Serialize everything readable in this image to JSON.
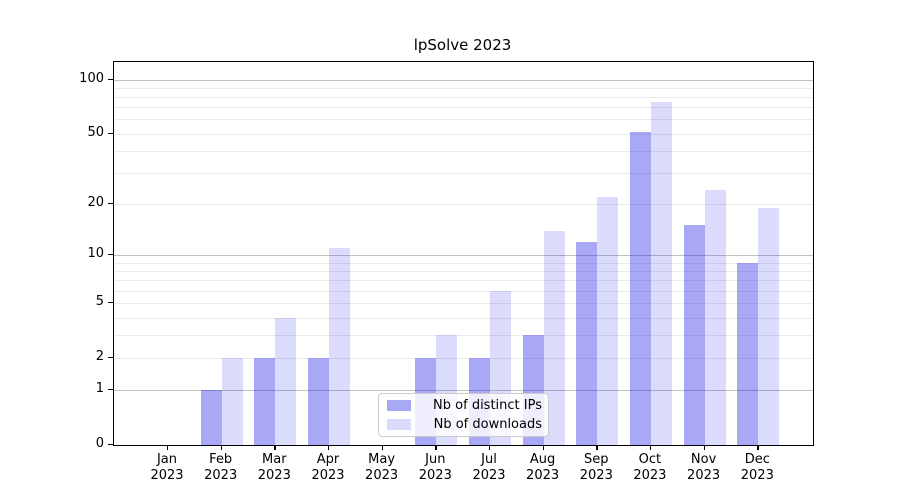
{
  "title": "lpSolve 2023",
  "colors": {
    "ips_bar": "rgba(0,0,225,0.34)",
    "downloads_bar": "rgba(0,0,225,0.14)",
    "major_grid": "#c2c2c2",
    "minor_grid": "#ebebeb",
    "axis": "#000000"
  },
  "legend": {
    "entries": [
      {
        "label": "Nb of distinct IPs",
        "color": "rgba(0,0,225,0.34)"
      },
      {
        "label": "Nb of downloads",
        "color": "rgba(0,0,225,0.14)"
      }
    ]
  },
  "chart_data": {
    "type": "bar",
    "title": "lpSolve 2023",
    "categories": [
      "Jan 2023",
      "Feb 2023",
      "Mar 2023",
      "Apr 2023",
      "May 2023",
      "Jun 2023",
      "Jul 2023",
      "Aug 2023",
      "Sep 2023",
      "Oct 2023",
      "Nov 2023",
      "Dec 2023"
    ],
    "series": [
      {
        "name": "Nb of distinct IPs",
        "color": "rgba(0,0,225,0.34)",
        "values": [
          0,
          1,
          2,
          2,
          0,
          2,
          2,
          3,
          12,
          51,
          15,
          9
        ]
      },
      {
        "name": "Nb of downloads",
        "color": "rgba(0,0,225,0.14)",
        "values": [
          0,
          2,
          4,
          11,
          0,
          3,
          6,
          14,
          22,
          75,
          24,
          19
        ]
      }
    ],
    "xlabel": "",
    "ylabel": "",
    "yscale": "log1p",
    "ylim": [
      0,
      125
    ],
    "y_tick_values": [
      0,
      1,
      2,
      5,
      10,
      20,
      50,
      100
    ],
    "y_tick_labels": [
      "0",
      "1",
      "2",
      "5",
      "10",
      "20",
      "50",
      "100"
    ],
    "y_major_gridlines": [
      1,
      10,
      100
    ],
    "y_minor_gridlines": [
      2,
      3,
      4,
      5,
      6,
      7,
      8,
      9,
      20,
      30,
      40,
      50,
      60,
      70,
      80,
      90
    ],
    "grid": "on",
    "legend_position": "lower center"
  }
}
